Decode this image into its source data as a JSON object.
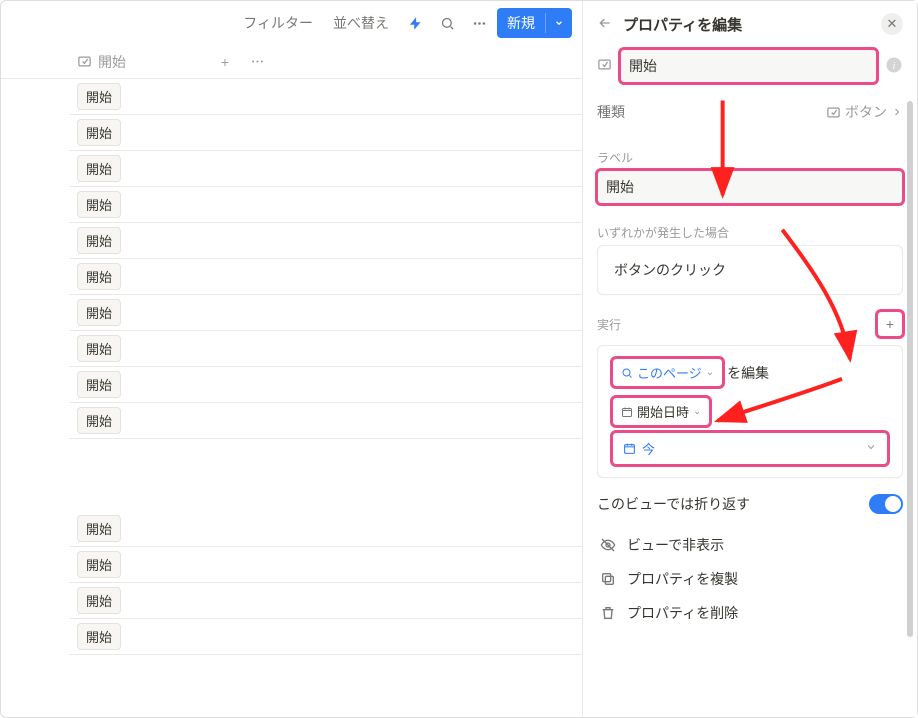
{
  "toolbar": {
    "filter": "フィルター",
    "sort": "並べ替え",
    "new": "新規"
  },
  "table": {
    "header": "開始",
    "rows": [
      "開始",
      "開始",
      "開始",
      "開始",
      "開始",
      "開始",
      "開始",
      "開始",
      "開始",
      "開始",
      null,
      "開始",
      "開始",
      "開始",
      "開始"
    ]
  },
  "panel": {
    "title": "プロパティを編集",
    "name_value": "開始",
    "type_label": "種類",
    "type_value": "ボタン",
    "label_label": "ラベル",
    "label_value": "開始",
    "trigger_label": "いずれかが発生した場合",
    "trigger_value": "ボタンのクリック",
    "action_label": "実行",
    "this_page": "このページ",
    "edit_suffix": "を編集",
    "start_datetime": "開始日時",
    "now": "今",
    "wrap_label": "このビューでは折り返す",
    "hide": "ビューで非表示",
    "dup": "プロパティを複製",
    "del": "プロパティを削除"
  },
  "colors": {
    "accent": "#2e7cf6",
    "highlight": "#ea4c89",
    "arrow": "#ff2020"
  }
}
